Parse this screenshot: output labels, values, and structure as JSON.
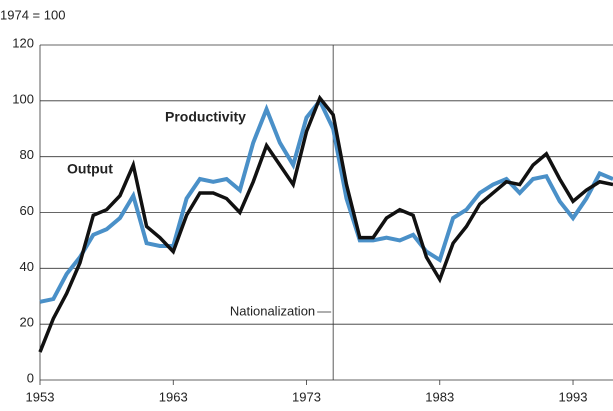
{
  "chart_data": {
    "type": "line",
    "ylabel": "1974 = 100",
    "x": [
      1953,
      1954,
      1955,
      1956,
      1957,
      1958,
      1959,
      1960,
      1961,
      1962,
      1963,
      1964,
      1965,
      1966,
      1967,
      1968,
      1969,
      1970,
      1971,
      1972,
      1973,
      1974,
      1975,
      1976,
      1977,
      1978,
      1979,
      1980,
      1981,
      1982,
      1983,
      1984,
      1985,
      1986,
      1987,
      1988,
      1989,
      1990,
      1991,
      1992,
      1993,
      1994,
      1995,
      1996
    ],
    "series": [
      {
        "name": "Productivity",
        "color": "#4a90c8",
        "values": [
          28,
          29,
          38,
          44,
          52,
          54,
          58,
          66,
          49,
          48,
          48,
          65,
          72,
          71,
          72,
          68,
          85,
          97,
          85,
          77,
          94,
          100,
          90,
          65,
          50,
          50,
          51,
          50,
          52,
          46,
          43,
          58,
          61,
          67,
          70,
          72,
          67,
          72,
          73,
          64,
          58,
          65,
          74,
          72
        ]
      },
      {
        "name": "Output",
        "color": "#111111",
        "values": [
          10,
          22,
          31,
          42,
          59,
          61,
          66,
          77,
          55,
          51,
          46,
          59,
          67,
          67,
          65,
          60,
          71,
          84,
          77,
          70,
          89,
          101,
          95,
          70,
          51,
          51,
          58,
          61,
          59,
          44,
          36,
          49,
          55,
          63,
          67,
          71,
          70,
          77,
          81,
          72,
          64,
          68,
          71,
          70
        ]
      }
    ],
    "xlim": [
      1953,
      1996
    ],
    "xticks": [
      1953,
      1963,
      1973,
      1983,
      1993
    ],
    "ylim": [
      0,
      120
    ],
    "yticks": [
      0,
      20,
      40,
      60,
      80,
      100,
      120
    ],
    "grid": true,
    "vline": {
      "x": 1975,
      "label": "Nationalization"
    }
  }
}
